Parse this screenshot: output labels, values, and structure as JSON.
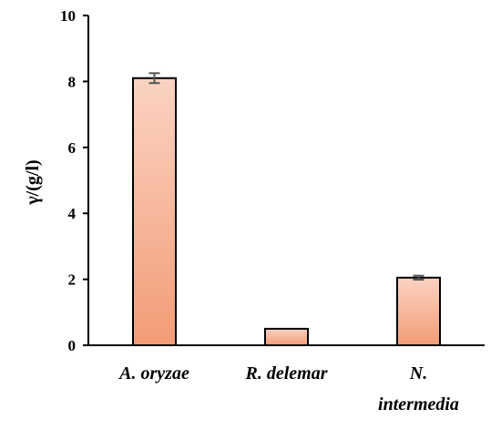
{
  "chart_data": {
    "type": "bar",
    "categories": [
      [
        "A. oryzae"
      ],
      [
        "R. delemar"
      ],
      [
        "N.",
        "intermedia"
      ]
    ],
    "values": [
      8.1,
      0.5,
      2.05
    ],
    "errors": [
      0.15,
      0,
      0.06
    ],
    "ylabel": "γ/(g/l)",
    "ylim": [
      0,
      10
    ],
    "yticks": [
      "0",
      "2",
      "4",
      "6",
      "8",
      "10"
    ],
    "grid": false,
    "colors": {
      "bar_top": "#fbd3c2",
      "bar_bottom": "#f29c77",
      "bar_stroke": "#000000",
      "error_bar": "#555555"
    }
  }
}
